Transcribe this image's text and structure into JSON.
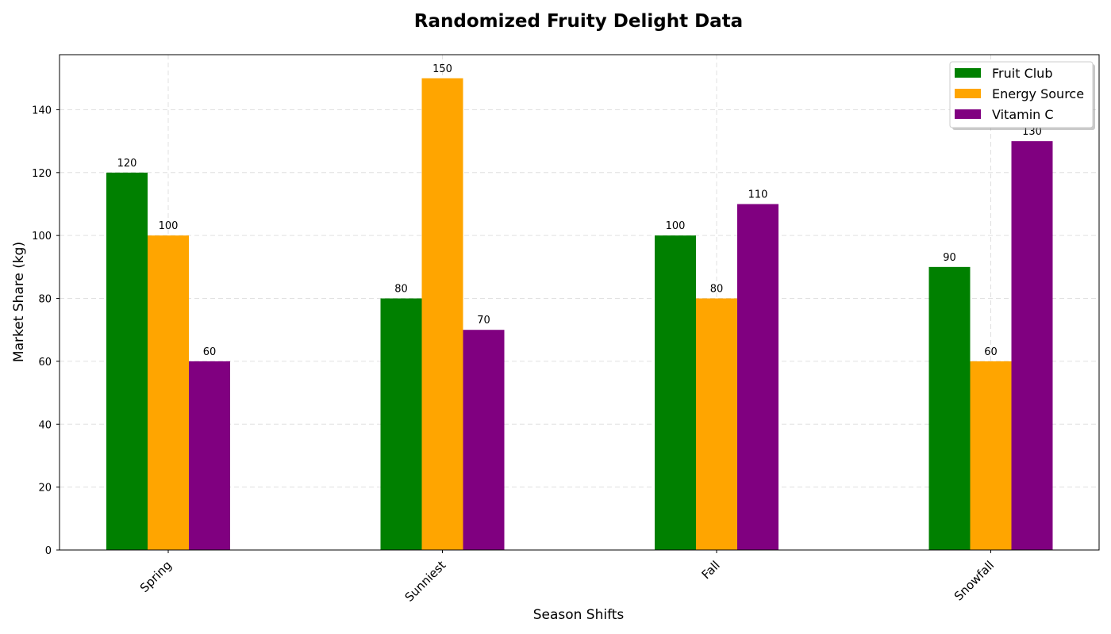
{
  "chart_data": {
    "type": "bar",
    "title": "Randomized Fruity Delight Data",
    "xlabel": "Season Shifts",
    "ylabel": "Market Share (kg)",
    "categories": [
      "Spring",
      "Sunniest",
      "Fall",
      "Snowfall"
    ],
    "series": [
      {
        "name": "Fruit Club",
        "color": "#008000",
        "values": [
          120,
          80,
          100,
          90
        ]
      },
      {
        "name": "Energy Source",
        "color": "#FFA500",
        "values": [
          100,
          150,
          80,
          60
        ]
      },
      {
        "name": "Vitamin C",
        "color": "#800080",
        "values": [
          60,
          70,
          110,
          130
        ]
      }
    ],
    "ylim": [
      0,
      157.5
    ],
    "yticks": [
      0,
      20,
      40,
      60,
      80,
      100,
      120,
      140
    ],
    "grid": true,
    "legend_position": "top-right",
    "data_labels": true
  }
}
